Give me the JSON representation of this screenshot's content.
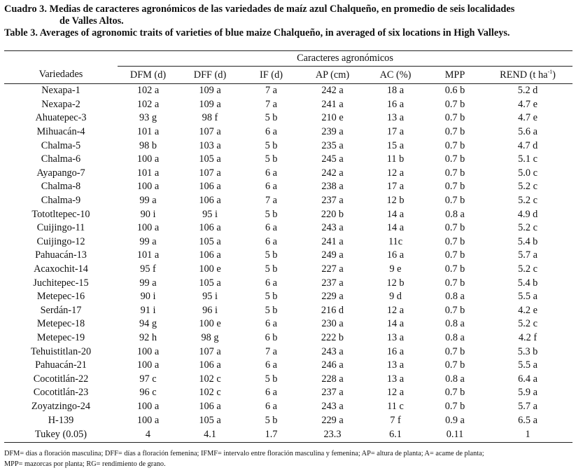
{
  "caption": {
    "es_line1": "Cuadro 3. Medias de caracteres agronómicos de las variedades de maíz azul Chalqueño, en promedio de seis localidades",
    "es_line2": "de Valles Altos.",
    "en_line": "Table 3. Averages of agronomic traits of varieties of blue maize Chalqueño, in averaged of six locations in High Valleys."
  },
  "table": {
    "group_header": "Caracteres agronómicos",
    "col_variety": "Variedades",
    "columns": [
      "DFM (d)",
      "DFF (d)",
      "IF (d)",
      "AP (cm)",
      "AC (%)",
      "MPP"
    ],
    "rend_label": "REND (t ha",
    "rend_sup": "-1",
    "rend_close": ")",
    "rows": [
      {
        "v": "Nexapa-1",
        "c": [
          "102 a",
          "109 a",
          "7 a",
          "242 a",
          "18 a",
          "0.6 b",
          "5.2 d"
        ]
      },
      {
        "v": "Nexapa-2",
        "c": [
          "102 a",
          "109 a",
          "7 a",
          "241 a",
          "16 a",
          "0.7 b",
          "4.7 e"
        ]
      },
      {
        "v": "Ahuatepec-3",
        "c": [
          "93 g",
          "98 f",
          "5 b",
          "210 e",
          "13 a",
          "0.7 b",
          "4.7 e"
        ]
      },
      {
        "v": "Mihuacán-4",
        "c": [
          "101 a",
          "107 a",
          "6 a",
          "239 a",
          "17 a",
          "0.7 b",
          "5.6 a"
        ]
      },
      {
        "v": "Chalma-5",
        "c": [
          "98 b",
          "103 a",
          "5 b",
          "235 a",
          "15 a",
          "0.7 b",
          "4.7 d"
        ]
      },
      {
        "v": "Chalma-6",
        "c": [
          "100 a",
          "105 a",
          "5 b",
          "245 a",
          "11 b",
          "0.7 b",
          "5.1 c"
        ]
      },
      {
        "v": "Ayapango-7",
        "c": [
          "101 a",
          "107 a",
          "6 a",
          "242 a",
          "12 a",
          "0.7 b",
          "5.0 c"
        ]
      },
      {
        "v": "Chalma-8",
        "c": [
          "100 a",
          "106 a",
          "6 a",
          "238 a",
          "17 a",
          "0.7 b",
          "5.2 c"
        ]
      },
      {
        "v": "Chalma-9",
        "c": [
          "99 a",
          "106 a",
          "7 a",
          "237 a",
          "12 b",
          "0.7 b",
          "5.2 c"
        ]
      },
      {
        "v": "Tototltepec-10",
        "c": [
          "90 i",
          "95 i",
          "5 b",
          "220 b",
          "14 a",
          "0.8 a",
          "4.9 d"
        ]
      },
      {
        "v": "Cuijingo-11",
        "c": [
          "100 a",
          "106 a",
          "6 a",
          "243 a",
          "14 a",
          "0.7 b",
          "5.2 c"
        ]
      },
      {
        "v": "Cuijingo-12",
        "c": [
          "99 a",
          "105 a",
          "6 a",
          "241 a",
          "11c",
          "0.7 b",
          "5.4 b"
        ]
      },
      {
        "v": "Pahuacán-13",
        "c": [
          "101 a",
          "106 a",
          "5 b",
          "249 a",
          "16 a",
          "0.7 b",
          "5.7 a"
        ]
      },
      {
        "v": "Acaxochit-14",
        "c": [
          "95 f",
          "100 e",
          "5 b",
          "227 a",
          "9 e",
          "0.7 b",
          "5.2 c"
        ]
      },
      {
        "v": "Juchitepec-15",
        "c": [
          "99 a",
          "105 a",
          "6 a",
          "237 a",
          "12 b",
          "0.7 b",
          "5.4 b"
        ]
      },
      {
        "v": "Metepec-16",
        "c": [
          "90 i",
          "95 i",
          "5 b",
          "229 a",
          "9 d",
          "0.8 a",
          "5.5 a"
        ]
      },
      {
        "v": "Serdán-17",
        "c": [
          "91 i",
          "96 i",
          "5 b",
          "216 d",
          "12 a",
          "0.7 b",
          "4.2 e"
        ]
      },
      {
        "v": "Metepec-18",
        "c": [
          "94 g",
          "100 e",
          "6 a",
          "230 a",
          "14 a",
          "0.8 a",
          "5.2 c"
        ]
      },
      {
        "v": "Metepec-19",
        "c": [
          "92 h",
          "98 g",
          "6 b",
          "222 b",
          "13 a",
          "0.8 a",
          "4.2 f"
        ]
      },
      {
        "v": "Tehuistitlan-20",
        "c": [
          "100 a",
          "107 a",
          "7 a",
          "243 a",
          "16 a",
          "0.7 b",
          "5.3 b"
        ]
      },
      {
        "v": "Pahuacán-21",
        "c": [
          "100 a",
          "106 a",
          "6 a",
          "246 a",
          "13 a",
          "0.7 b",
          "5.5 a"
        ]
      },
      {
        "v": "Cocotitlán-22",
        "c": [
          "97 c",
          "102 c",
          "5 b",
          "228 a",
          "13 a",
          "0.8 a",
          "6.4 a"
        ]
      },
      {
        "v": "Cocotitlán-23",
        "c": [
          "96 c",
          "102 c",
          "6 a",
          "237 a",
          "12 a",
          "0.7 b",
          "5.9 a"
        ]
      },
      {
        "v": "Zoyatzingo-24",
        "c": [
          "100 a",
          "106 a",
          "6 a",
          "243 a",
          "11 c",
          "0.7 b",
          "5.7 a"
        ]
      },
      {
        "v": "H-139",
        "c": [
          "100 a",
          "105 a",
          "5 b",
          "229 a",
          "7 f",
          "0.9 a",
          "6.5 a"
        ]
      }
    ],
    "tukey": {
      "v": "Tukey (0.05)",
      "c": [
        "4",
        "4.1",
        "1.7",
        "23.3",
        "6.1",
        "0.11",
        "1"
      ]
    }
  },
  "footnote": {
    "line1": "DFM= días a floración masculina; DFF= días a floración femenina; IFMF= intervalo entre floración masculina y femenina; AP= altura de planta; A= acame de planta;",
    "line2": "MPP= mazorcas por planta; RG= rendimiento de grano."
  }
}
